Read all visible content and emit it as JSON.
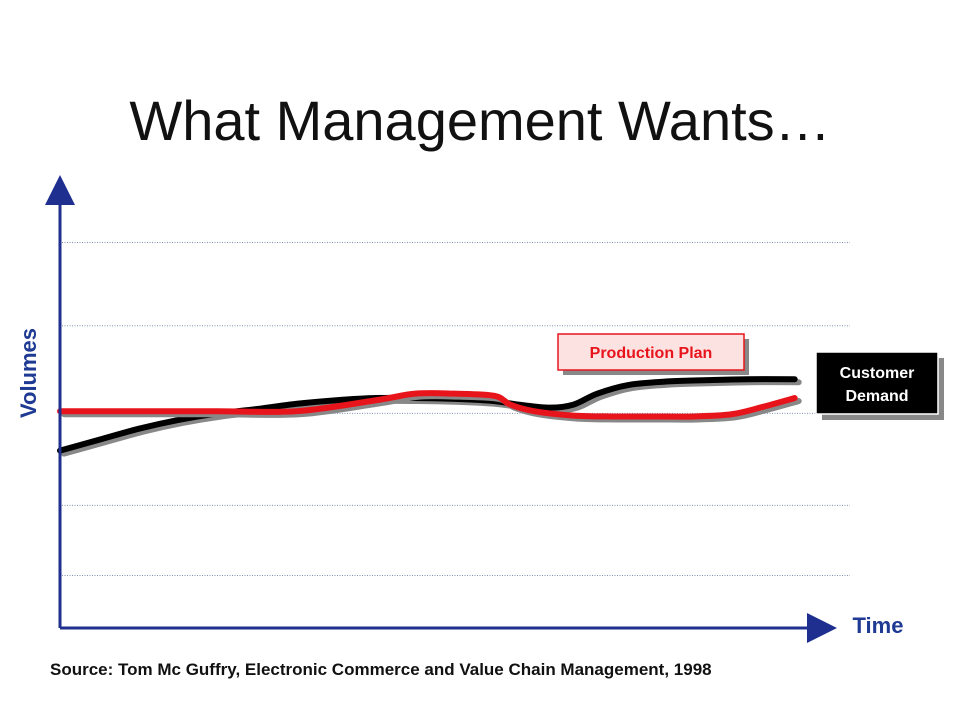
{
  "slide": {
    "title": "What Management Wants…",
    "source": "Source: Tom Mc Guffry, Electronic Commerce and Value Chain Management, 1998"
  },
  "colors": {
    "axis": "#1f2f8f",
    "label_blue": "#1f3a93",
    "production_plan": "#e8141b",
    "customer_demand": "#000000",
    "shadow": "#888888",
    "gridline": "#8090b0"
  },
  "chart_data": {
    "type": "line",
    "title": "What Management Wants…",
    "xlabel": "Time",
    "ylabel": "Volumes",
    "xlim": [
      0,
      100
    ],
    "ylim": [
      0,
      100
    ],
    "grid": true,
    "grid_lines_y": [
      12,
      28,
      49,
      69,
      88
    ],
    "series": [
      {
        "name": "Production Plan",
        "color": "#e8141b",
        "x": [
          0,
          10,
          20,
          30,
          40,
          45,
          50,
          55,
          57,
          60,
          65,
          70,
          75,
          80,
          85,
          89,
          93
        ],
        "values": [
          49.5,
          49.5,
          49.5,
          49.5,
          52,
          53.5,
          53.5,
          53,
          51,
          49.5,
          48.5,
          48.3,
          48.3,
          48.3,
          48.8,
          50.5,
          52.5
        ]
      },
      {
        "name": "Customer Demand",
        "color": "#000000",
        "x": [
          0,
          2,
          5,
          10,
          15,
          20,
          25,
          30,
          35,
          40,
          45,
          50,
          55,
          58,
          62,
          65,
          68,
          72,
          77,
          82,
          87,
          93
        ],
        "values": [
          40.5,
          41.5,
          43,
          45.5,
          47.5,
          49,
          50,
          51.2,
          52,
          52.5,
          52.5,
          52.3,
          51.8,
          51,
          50.3,
          51,
          53.5,
          55.5,
          56.3,
          56.6,
          56.8,
          56.8
        ]
      }
    ],
    "annotations": [
      "Production Plan",
      "Customer Demand"
    ]
  }
}
